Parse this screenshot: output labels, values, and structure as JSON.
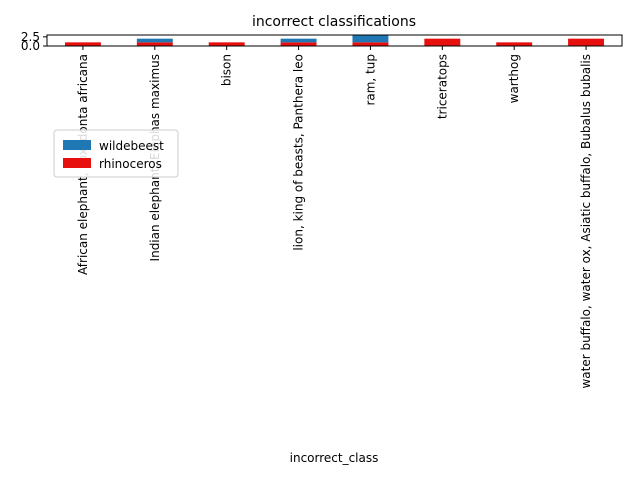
{
  "chart_data": {
    "type": "bar",
    "stacked": true,
    "title": "incorrect classifications",
    "xlabel": "incorrect_class",
    "ylabel": "",
    "ylim": [
      0,
      3
    ],
    "yticks": [
      "0.0",
      "2.5"
    ],
    "legend_position": "top-left",
    "categories": [
      "African elephant, Loxodonta africana",
      "Indian elephant, Elephas maximus",
      "bison",
      "lion, king of beasts, Panthera leo",
      "ram, tup",
      "triceratops",
      "warthog",
      "water buffalo, water ox, Asiatic buffalo, Bubalus bubalis"
    ],
    "series": [
      {
        "name": "rhinoceros",
        "color": "#e8100e",
        "values": [
          1,
          1,
          1,
          1,
          1,
          2,
          1,
          2
        ]
      },
      {
        "name": "wildebeest",
        "color": "#1f77b4",
        "values": [
          0,
          1,
          0,
          1,
          2,
          0,
          0,
          0
        ]
      }
    ]
  }
}
